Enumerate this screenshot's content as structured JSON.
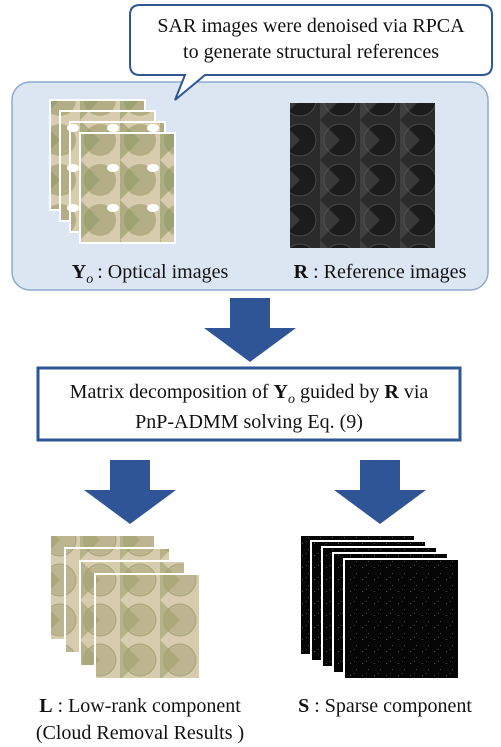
{
  "callout": {
    "lines": [
      "SAR images were denoised via RPCA",
      "to generate structural references"
    ]
  },
  "inputs": [
    {
      "symbol": "Y",
      "subscript": "o",
      "text": ": Optical images"
    },
    {
      "symbol": "R",
      "text": ": Reference images"
    }
  ],
  "process": {
    "before": "Matrix decomposition of",
    "symbol1": "Y",
    "subscript": "o",
    "middle": "guided by",
    "symbol2": "R",
    "after": "via",
    "line2": "PnP-ADMM solving Eq. (9)"
  },
  "outputs": [
    {
      "symbol": "L",
      "text": ": Low-rank component",
      "note": "(Cloud Removal Results )"
    },
    {
      "symbol": "S",
      "text": ": Sparse component"
    }
  ]
}
